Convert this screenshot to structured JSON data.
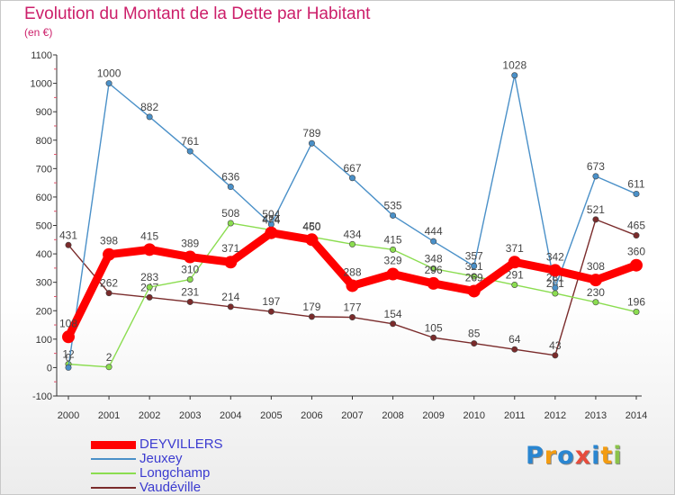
{
  "header": {
    "title": "Evolution du Montant de la Dette par Habitant",
    "unit": "(en €)"
  },
  "logo": {
    "text": "Proxiti",
    "letters": [
      {
        "ch": "P",
        "color": "#2a86d1"
      },
      {
        "ch": "r",
        "color": "#f39c12"
      },
      {
        "ch": "o",
        "color": "#2a86d1"
      },
      {
        "ch": "x",
        "color": "#e74c3c"
      },
      {
        "ch": "i",
        "color": "#2a86d1"
      },
      {
        "ch": "t",
        "color": "#f39c12"
      },
      {
        "ch": "i",
        "color": "#8bc34a"
      }
    ]
  },
  "chart_data": {
    "type": "line",
    "title": "Evolution du Montant de la Dette par Habitant",
    "ylabel": "(en €)",
    "xlabel": "",
    "x": [
      "2000",
      "2001",
      "2002",
      "2003",
      "2004",
      "2005",
      "2006",
      "2007",
      "2008",
      "2009",
      "2010",
      "2011",
      "2012",
      "2013",
      "2014"
    ],
    "ylim": [
      -100,
      1100
    ],
    "yticks": [
      -100,
      0,
      100,
      200,
      300,
      400,
      500,
      600,
      700,
      800,
      900,
      1000,
      1100
    ],
    "grid": false,
    "legend": "bottom-left",
    "series": [
      {
        "name": "Vaudéville",
        "color": "#7a2b2b",
        "values": [
          431,
          262,
          247,
          231,
          214,
          197,
          179,
          177,
          154,
          105,
          85,
          64,
          43,
          521,
          465
        ]
      },
      {
        "name": "Longchamp",
        "color": "#8bdd50",
        "values": [
          12,
          2,
          283,
          310,
          508,
          484,
          460,
          434,
          415,
          348,
          321,
          291,
          261,
          230,
          196
        ]
      },
      {
        "name": "Jeuxey",
        "color": "#4a90c8",
        "values": [
          0,
          1000,
          882,
          761,
          636,
          504,
          789,
          667,
          535,
          444,
          357,
          1028,
          281,
          673,
          611
        ]
      },
      {
        "name": "DEYVILLERS",
        "color": "#ff0000",
        "values": [
          108,
          398,
          415,
          389,
          371,
          474,
          450,
          288,
          329,
          296,
          269,
          371,
          342,
          308,
          360
        ]
      }
    ]
  }
}
